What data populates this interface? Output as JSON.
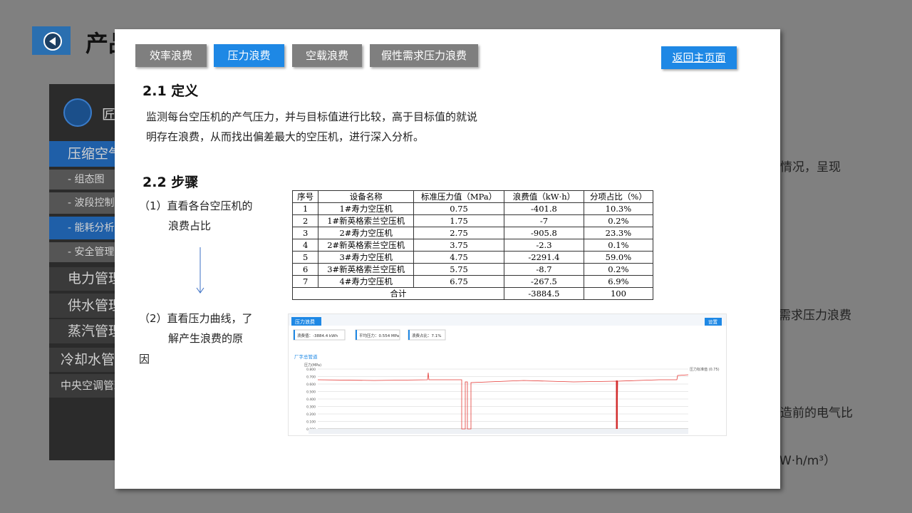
{
  "background": {
    "title": "产品",
    "logo_text": "匠",
    "menu": [
      "压缩空气",
      "- 组态图",
      "- 波段控制",
      "- 能耗分析",
      "- 安全管理",
      "电力管理",
      "供水管理",
      "蒸汽管理",
      "冷却水管理",
      "中央空调管理"
    ],
    "right_texts": [
      "情况，呈现",
      "需求压力浪费",
      "造前的电气比",
      "W·h/m³）"
    ]
  },
  "modal": {
    "tabs": [
      "效率浪费",
      "压力浪费",
      "空载浪费",
      "假性需求压力浪费"
    ],
    "back_button": "返回主页面",
    "section1": {
      "heading": "2.1 定义",
      "lines": [
        "监测每台空压机的产气压力，并与目标值进行比较，高于目标值的就说",
        "明存在浪费，从而找出偏差最大的空压机，进行深入分析。"
      ]
    },
    "section2": {
      "heading": "2.2 步骤",
      "step1": [
        "（1）直看各台空压机的",
        "浪费占比"
      ],
      "step2": [
        "（2）直看压力曲线，了",
        "解产生浪费的原",
        "因"
      ]
    },
    "table": {
      "header": [
        "序号",
        "设备名称",
        "标准压力值（MPa）",
        "浪费值（kW·h）",
        "分项占比（%）"
      ],
      "rows": [
        [
          "1",
          "1#寿力空压机",
          "0.75",
          "-401.8",
          "10.3%"
        ],
        [
          "2",
          "1#新英格索兰空压机",
          "1.75",
          "-7",
          "0.2%"
        ],
        [
          "3",
          "2#寿力空压机",
          "2.75",
          "-905.8",
          "23.3%"
        ],
        [
          "4",
          "2#新英格索兰空压机",
          "3.75",
          "-2.3",
          "0.1%"
        ],
        [
          "5",
          "3#寿力空压机",
          "4.75",
          "-2291.4",
          "59.0%"
        ],
        [
          "6",
          "3#新英格索兰空压机",
          "5.75",
          "-8.7",
          "0.2%"
        ],
        [
          "7",
          "4#寿力空压机",
          "6.75",
          "-267.5",
          "6.9%"
        ]
      ],
      "total": [
        "合计",
        "-3884.5",
        "100"
      ]
    },
    "screenshot": {
      "tag": "压力浪费",
      "button": "设置",
      "stats": [
        "浪费值：-3884.4 kWh",
        "平均压力：0.554 MPa",
        "浪费占比：7.1%"
      ],
      "series_title": "厂字总管道",
      "y_label": "压力(MPa)",
      "standard_label": "压力标准值 (0.75)",
      "ylim": [
        0,
        0.8
      ],
      "yticks": [
        {
          "value": 0.8,
          "label": "0.800"
        },
        {
          "value": 0.7,
          "label": "0.700"
        },
        {
          "value": 0.6,
          "label": "0.600"
        },
        {
          "value": 0.5,
          "label": "0.500"
        },
        {
          "value": 0.4,
          "label": "0.400"
        },
        {
          "value": 0.3,
          "label": "0.300"
        },
        {
          "value": 0.2,
          "label": "0.200"
        },
        {
          "value": 0.1,
          "label": "0.100"
        },
        {
          "value": 0,
          "label": "0.000"
        }
      ]
    }
  }
}
